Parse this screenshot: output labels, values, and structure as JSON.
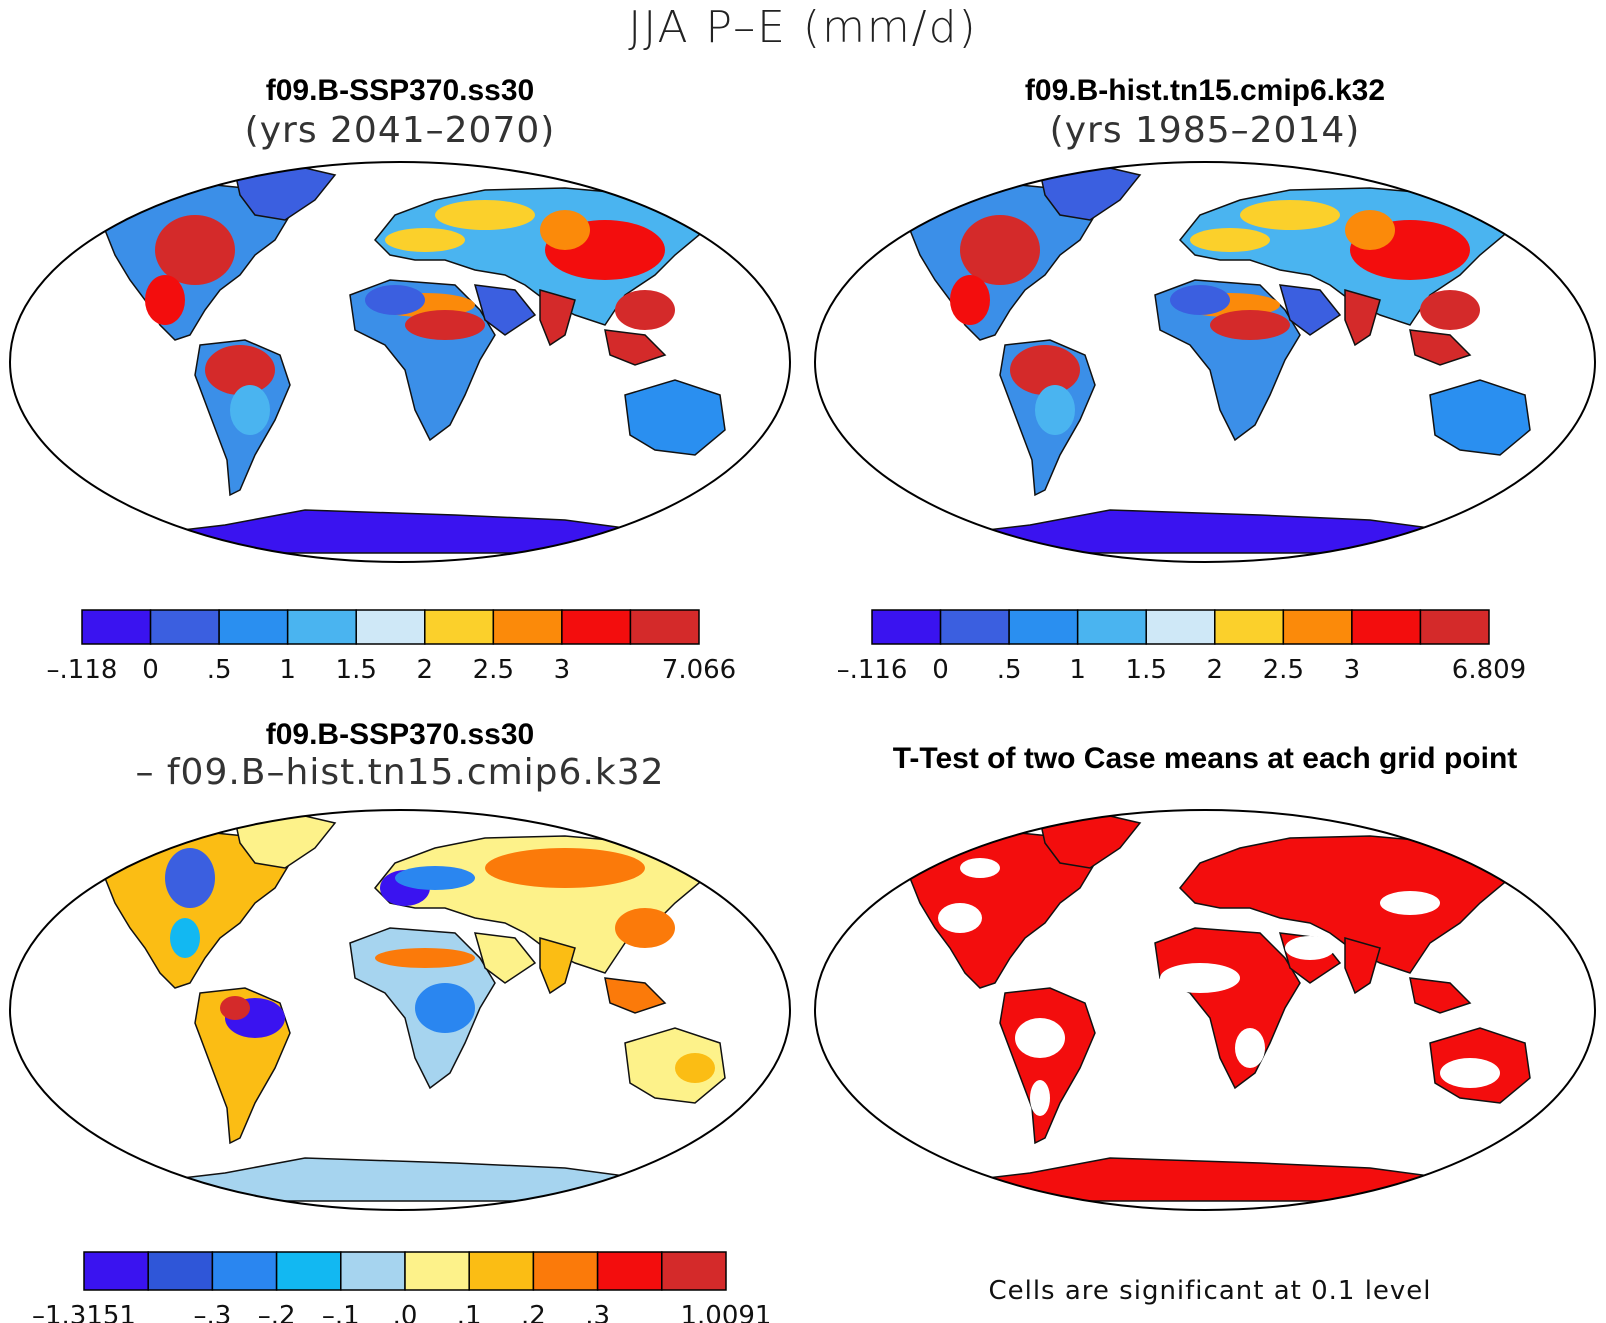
{
  "title": "JJA P–E (mm/d)",
  "panels": [
    {
      "title": "f09.B-SSP370.ss30",
      "subtitle": "(yrs 2041–2070)"
    },
    {
      "title": "f09.B-hist.tn15.cmip6.k32",
      "subtitle": "(yrs 1985–2014)"
    },
    {
      "title": "f09.B-SSP370.ss30",
      "subtitle": "– f09.B–hist.tn15.cmip6.k32"
    },
    {
      "title": "T-Test of two Case means at each grid point",
      "subtitle": ""
    }
  ],
  "colorbars": [
    {
      "colors": [
        "#3a13f0",
        "#3b5fe0",
        "#2a8ff0",
        "#4ab4f0",
        "#cfe8f7",
        "#fbd02b",
        "#fb8a0a",
        "#f30d0d",
        "#d42a2a"
      ],
      "labels": [
        "–.118",
        "0",
        ".5",
        "1",
        "1.5",
        "2",
        "2.5",
        "3",
        "7.066"
      ]
    },
    {
      "colors": [
        "#3a13f0",
        "#3b5fe0",
        "#2a8ff0",
        "#4ab4f0",
        "#cfe8f7",
        "#fbd02b",
        "#fb8a0a",
        "#f30d0d",
        "#d42a2a"
      ],
      "labels": [
        "–.116",
        "0",
        ".5",
        "1",
        "1.5",
        "2",
        "2.5",
        "3",
        "6.809"
      ]
    },
    {
      "colors": [
        "#3a13f0",
        "#2f56d8",
        "#2a86f0",
        "#12b8f2",
        "#a6d4ef",
        "#fdf28a",
        "#fbbd14",
        "#fb7a0a",
        "#f30d0d",
        "#d42a2a"
      ],
      "labels": [
        "–1.3151",
        "–.3",
        "–.2",
        "–.1",
        ".0",
        ".1",
        ".2",
        ".3",
        "1.0091"
      ]
    }
  ],
  "significance_note": "Cells are significant at 0.1 level",
  "significance_color": "#f30d0d"
}
